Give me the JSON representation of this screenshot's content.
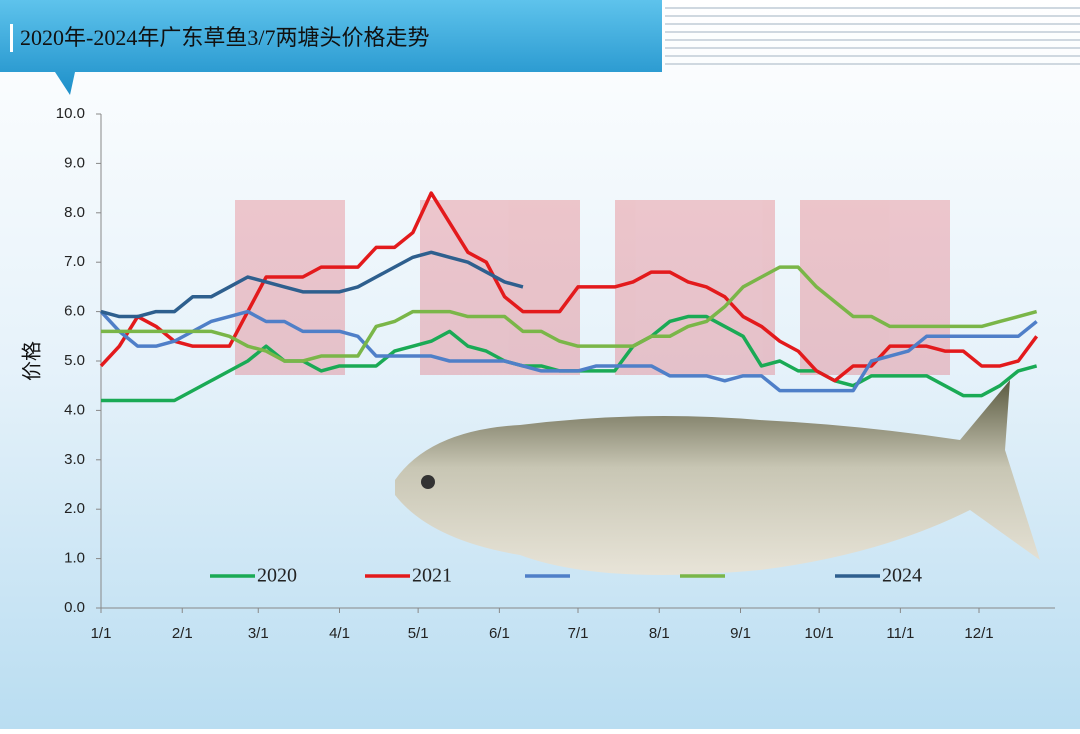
{
  "chart_data": {
    "type": "line",
    "title": "2020年-2024年广东草鱼3/7两塘头价格走势",
    "y_label": "价格",
    "x": [
      0,
      7,
      14,
      21,
      28,
      35,
      42,
      49,
      56,
      63,
      70,
      77,
      84,
      91,
      98,
      105,
      112,
      119,
      126,
      133,
      140,
      147,
      154,
      161,
      168,
      175,
      182,
      189,
      196,
      203,
      210,
      217,
      224,
      231,
      238,
      245,
      252,
      259,
      266,
      273,
      280,
      287,
      294,
      301,
      308,
      315,
      322,
      329,
      336,
      343,
      350,
      357
    ],
    "xlim": [
      0,
      364
    ],
    "xticks": [
      {
        "value": 0,
        "label": "1/1"
      },
      {
        "value": 31,
        "label": "2/1"
      },
      {
        "value": 60,
        "label": "3/1"
      },
      {
        "value": 91,
        "label": "4/1"
      },
      {
        "value": 121,
        "label": "5/1"
      },
      {
        "value": 152,
        "label": "6/1"
      },
      {
        "value": 182,
        "label": "7/1"
      },
      {
        "value": 213,
        "label": "8/1"
      },
      {
        "value": 244,
        "label": "9/1"
      },
      {
        "value": 274,
        "label": "10/1"
      },
      {
        "value": 305,
        "label": "11/1"
      },
      {
        "value": 335,
        "label": "12/1"
      }
    ],
    "ylim": [
      0,
      10
    ],
    "yticks": [
      {
        "value": 0,
        "label": "0.0"
      },
      {
        "value": 1,
        "label": "1.0"
      },
      {
        "value": 2,
        "label": "2.0"
      },
      {
        "value": 3,
        "label": "3.0"
      },
      {
        "value": 4,
        "label": "4.0"
      },
      {
        "value": 5,
        "label": "5.0"
      },
      {
        "value": 6,
        "label": "6.0"
      },
      {
        "value": 7,
        "label": "7.0"
      },
      {
        "value": 8,
        "label": "8.0"
      },
      {
        "value": 9,
        "label": "9.0"
      },
      {
        "value": 10,
        "label": "10.0"
      }
    ],
    "series": [
      {
        "name": "2020",
        "color": "#1aaa55",
        "values": [
          4.2,
          4.2,
          4.2,
          4.2,
          4.2,
          4.4,
          4.6,
          4.8,
          5.0,
          5.3,
          5.0,
          5.0,
          4.8,
          4.9,
          4.9,
          4.9,
          5.2,
          5.3,
          5.4,
          5.6,
          5.3,
          5.2,
          5.0,
          4.9,
          4.9,
          4.8,
          4.8,
          4.8,
          4.8,
          5.3,
          5.5,
          5.8,
          5.9,
          5.9,
          5.7,
          5.5,
          4.9,
          5.0,
          4.8,
          4.8,
          4.6,
          4.5,
          4.7,
          4.7,
          4.7,
          4.7,
          4.5,
          4.3,
          4.3,
          4.5,
          4.8,
          4.9
        ]
      },
      {
        "name": "2021",
        "color": "#e31a1c",
        "values": [
          4.9,
          5.3,
          5.9,
          5.7,
          5.4,
          5.3,
          5.3,
          5.3,
          6.0,
          6.7,
          6.7,
          6.7,
          6.9,
          6.9,
          6.9,
          7.3,
          7.3,
          7.6,
          8.4,
          7.8,
          7.2,
          7.0,
          6.3,
          6.0,
          6.0,
          6.0,
          6.5,
          6.5,
          6.5,
          6.6,
          6.8,
          6.8,
          6.6,
          6.5,
          6.3,
          5.9,
          5.7,
          5.4,
          5.2,
          4.8,
          4.6,
          4.9,
          4.9,
          5.3,
          5.3,
          5.3,
          5.2,
          5.2,
          4.9,
          4.9,
          5.0,
          5.5
        ]
      },
      {
        "name": null,
        "color": "#4f7fc8",
        "values": [
          6.0,
          5.6,
          5.3,
          5.3,
          5.4,
          5.6,
          5.8,
          5.9,
          6.0,
          5.8,
          5.8,
          5.6,
          5.6,
          5.6,
          5.5,
          5.1,
          5.1,
          5.1,
          5.1,
          5.0,
          5.0,
          5.0,
          5.0,
          4.9,
          4.8,
          4.8,
          4.8,
          4.9,
          4.9,
          4.9,
          4.9,
          4.7,
          4.7,
          4.7,
          4.6,
          4.7,
          4.7,
          4.4,
          4.4,
          4.4,
          4.4,
          4.4,
          5.0,
          5.1,
          5.2,
          5.5,
          5.5,
          5.5,
          5.5,
          5.5,
          5.5,
          5.8
        ]
      },
      {
        "name": null,
        "color": "#7ab648",
        "values": [
          5.6,
          5.6,
          5.6,
          5.6,
          5.6,
          5.6,
          5.6,
          5.5,
          5.3,
          5.2,
          5.0,
          5.0,
          5.1,
          5.1,
          5.1,
          5.7,
          5.8,
          6.0,
          6.0,
          6.0,
          5.9,
          5.9,
          5.9,
          5.6,
          5.6,
          5.4,
          5.3,
          5.3,
          5.3,
          5.3,
          5.5,
          5.5,
          5.7,
          5.8,
          6.1,
          6.5,
          6.7,
          6.9,
          6.9,
          6.5,
          6.2,
          5.9,
          5.9,
          5.7,
          5.7,
          5.7,
          5.7,
          5.7,
          5.7,
          5.8,
          5.9,
          6.0
        ]
      },
      {
        "name": "2024",
        "color": "#2e5f8e",
        "values": [
          6.0,
          5.9,
          5.9,
          6.0,
          6.0,
          6.3,
          6.3,
          6.5,
          6.7,
          6.6,
          6.5,
          6.4,
          6.4,
          6.4,
          6.5,
          6.7,
          6.9,
          7.1,
          7.2,
          7.1,
          7.0,
          6.8,
          6.6,
          6.5,
          null,
          null,
          null,
          null,
          null,
          null,
          null,
          null,
          null,
          null,
          null,
          null,
          null,
          null,
          null,
          null,
          null,
          null,
          null,
          null,
          null,
          null,
          null,
          null,
          null,
          null,
          null,
          null
        ]
      }
    ]
  }
}
